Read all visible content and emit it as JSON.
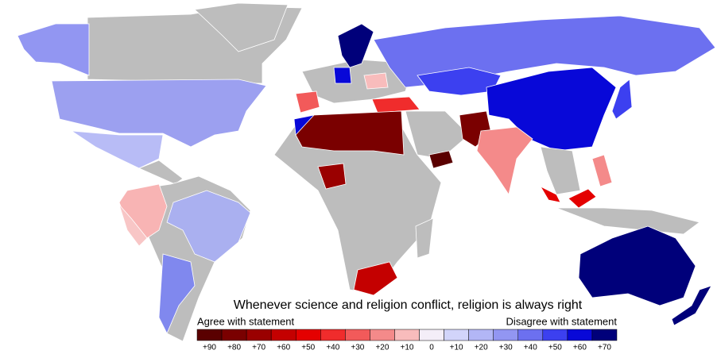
{
  "title": "Whenever science and religion conflict, religion is always right",
  "legend": {
    "left_label": "Agree with statement",
    "right_label": "Disagree with statement",
    "labels": [
      "+90",
      "+80",
      "+70",
      "+60",
      "+50",
      "+40",
      "+30",
      "+20",
      "+10",
      "0",
      "+10",
      "+20",
      "+30",
      "+40",
      "+50",
      "+60",
      "+70"
    ],
    "colors": [
      "#5a0000",
      "#7a0000",
      "#9a0000",
      "#c40000",
      "#e40000",
      "#f02c2c",
      "#f25a5a",
      "#f48a8a",
      "#f8bcbc",
      "#f4eef8",
      "#d2d4fa",
      "#b2b6f6",
      "#9296f2",
      "#6c70f0",
      "#3c40f0",
      "#0808d8",
      "#00007a"
    ]
  }
}
